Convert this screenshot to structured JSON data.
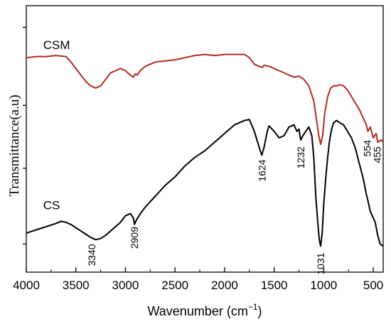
{
  "chart_data": {
    "type": "line",
    "title": "",
    "xlabel": "Wavenumber (cm",
    "xlabel_sup": "−1",
    "xlabel_close": ")",
    "ylabel": "Transmittance(a.u)",
    "xlim": [
      4000,
      400
    ],
    "x_ticks": [
      4000,
      3500,
      3000,
      2500,
      2000,
      1500,
      1000,
      500
    ],
    "x_tick_labels": [
      "4000",
      "3500",
      "3000",
      "2500",
      "2000",
      "1500",
      "1000",
      "500"
    ],
    "grid": false,
    "series": [
      {
        "name": "CSM",
        "color": "#b22a1e",
        "x": [
          4000,
          3900,
          3800,
          3700,
          3600,
          3550,
          3500,
          3450,
          3400,
          3350,
          3300,
          3250,
          3200,
          3150,
          3100,
          3050,
          3000,
          2950,
          2920,
          2900,
          2880,
          2850,
          2800,
          2700,
          2600,
          2500,
          2400,
          2300,
          2200,
          2100,
          2000,
          1900,
          1800,
          1750,
          1700,
          1650,
          1620,
          1600,
          1550,
          1500,
          1450,
          1400,
          1350,
          1300,
          1250,
          1200,
          1150,
          1100,
          1075,
          1050,
          1030,
          1010,
          990,
          960,
          930,
          900,
          870,
          840,
          800,
          760,
          720,
          680,
          640,
          600,
          570,
          554,
          530,
          500,
          470,
          455,
          420,
          400
        ],
        "y": [
          0.86,
          0.865,
          0.865,
          0.87,
          0.865,
          0.84,
          0.81,
          0.78,
          0.75,
          0.73,
          0.72,
          0.73,
          0.76,
          0.79,
          0.8,
          0.81,
          0.8,
          0.78,
          0.77,
          0.785,
          0.78,
          0.8,
          0.82,
          0.84,
          0.845,
          0.85,
          0.86,
          0.87,
          0.875,
          0.87,
          0.875,
          0.875,
          0.875,
          0.86,
          0.83,
          0.82,
          0.815,
          0.825,
          0.82,
          0.81,
          0.8,
          0.79,
          0.78,
          0.77,
          0.775,
          0.76,
          0.73,
          0.66,
          0.58,
          0.5,
          0.46,
          0.5,
          0.6,
          0.68,
          0.72,
          0.73,
          0.73,
          0.735,
          0.73,
          0.71,
          0.68,
          0.65,
          0.62,
          0.58,
          0.55,
          0.52,
          0.54,
          0.49,
          0.51,
          0.47,
          0.48,
          0.47
        ]
      },
      {
        "name": "CS",
        "color": "#000000",
        "x": [
          4000,
          3900,
          3800,
          3700,
          3650,
          3600,
          3550,
          3500,
          3450,
          3400,
          3350,
          3300,
          3250,
          3200,
          3150,
          3100,
          3050,
          3000,
          2950,
          2920,
          2909,
          2890,
          2850,
          2800,
          2700,
          2600,
          2500,
          2400,
          2300,
          2200,
          2100,
          2000,
          1900,
          1800,
          1750,
          1700,
          1660,
          1640,
          1624,
          1600,
          1570,
          1550,
          1500,
          1450,
          1400,
          1350,
          1300,
          1270,
          1250,
          1232,
          1210,
          1180,
          1150,
          1120,
          1100,
          1080,
          1060,
          1045,
          1031,
          1015,
          1000,
          980,
          960,
          940,
          920,
          900,
          870,
          840,
          800,
          760,
          720,
          680,
          640,
          600,
          570,
          554,
          530,
          500,
          480,
          455,
          430,
          400
        ],
        "y": [
          0.05,
          0.065,
          0.08,
          0.095,
          0.105,
          0.1,
          0.09,
          0.075,
          0.06,
          0.045,
          0.03,
          0.02,
          0.025,
          0.04,
          0.06,
          0.08,
          0.1,
          0.13,
          0.14,
          0.12,
          0.09,
          0.11,
          0.14,
          0.17,
          0.22,
          0.27,
          0.31,
          0.36,
          0.4,
          0.43,
          0.47,
          0.51,
          0.55,
          0.57,
          0.575,
          0.52,
          0.46,
          0.43,
          0.41,
          0.45,
          0.52,
          0.545,
          0.52,
          0.49,
          0.5,
          0.54,
          0.55,
          0.52,
          0.53,
          0.48,
          0.5,
          0.52,
          0.54,
          0.5,
          0.4,
          0.22,
          0.1,
          0.02,
          -0.01,
          0.05,
          0.18,
          0.3,
          0.4,
          0.48,
          0.53,
          0.56,
          0.57,
          0.56,
          0.55,
          0.52,
          0.49,
          0.44,
          0.37,
          0.3,
          0.23,
          0.2,
          0.15,
          0.12,
          0.1,
          0.04,
          0.0,
          -0.01
        ]
      }
    ],
    "series_labels": [
      {
        "text": "CSM",
        "x": 3830,
        "y": 0.9
      },
      {
        "text": "CS",
        "x": 3830,
        "y": 0.16
      }
    ],
    "annotations": [
      {
        "text": "3340",
        "x": 3340,
        "y": 0.0
      },
      {
        "text": "2909",
        "x": 2909,
        "y": 0.08
      },
      {
        "text": "1624",
        "x": 1624,
        "y": 0.39
      },
      {
        "text": "1232",
        "x": 1232,
        "y": 0.45
      },
      {
        "text": "1031",
        "x": 1031,
        "y": -0.04
      },
      {
        "text": "554",
        "x": 560,
        "y": 0.48
      },
      {
        "text": "455",
        "x": 462,
        "y": 0.45
      }
    ]
  }
}
